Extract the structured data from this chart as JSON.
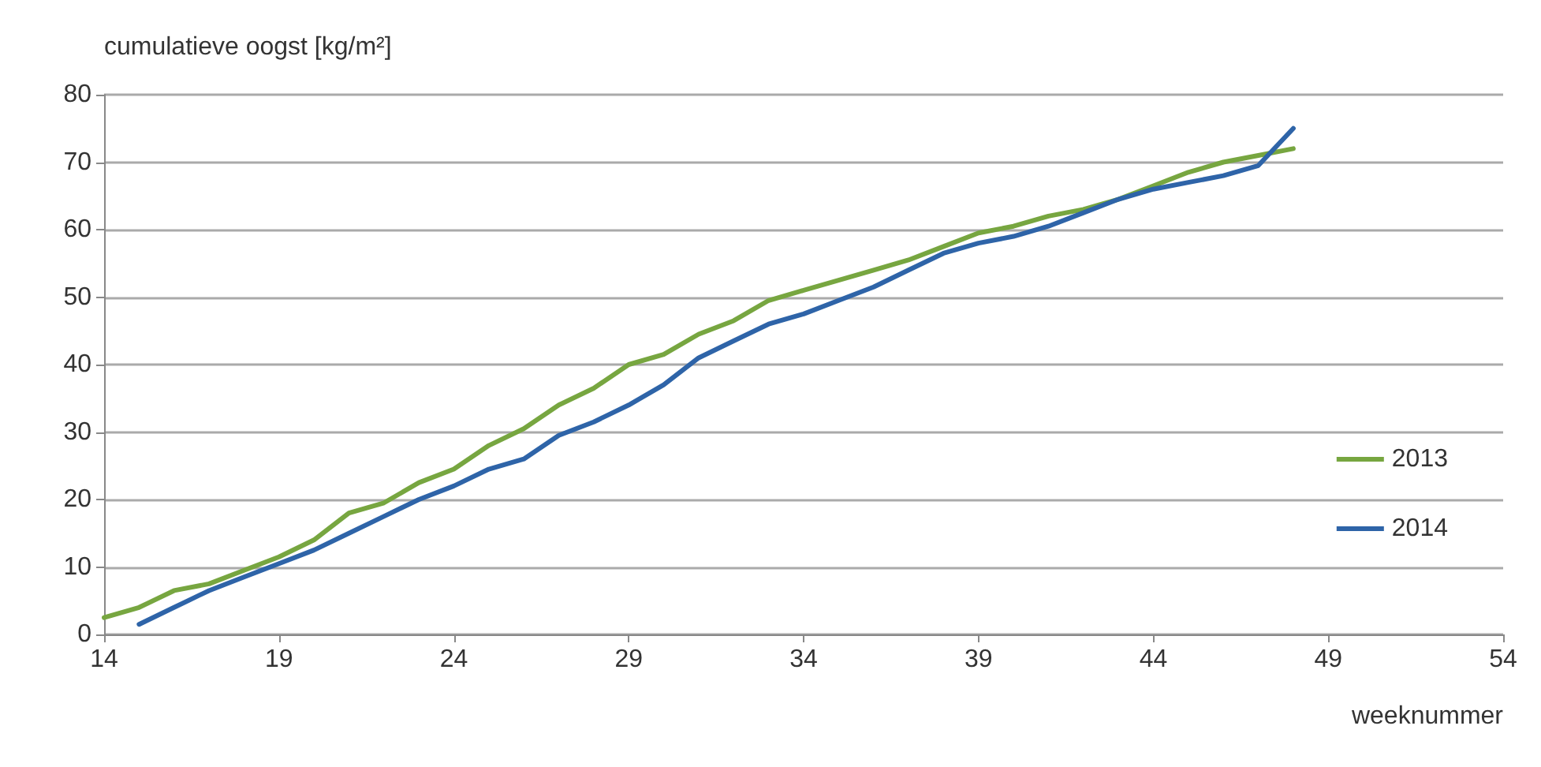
{
  "chart_data": {
    "type": "line",
    "xlabel": "weeknummer",
    "ylabel": "cumulatieve oogst [kg/m²]",
    "xlim": [
      14,
      54
    ],
    "xticks": [
      14,
      19,
      24,
      29,
      34,
      39,
      44,
      49,
      54
    ],
    "ylim": [
      0,
      80
    ],
    "yticks": [
      0,
      10,
      20,
      30,
      40,
      50,
      60,
      70,
      80
    ],
    "grid": "y",
    "legend": "bottom right",
    "marker": "none",
    "line_style": "solid",
    "series": [
      {
        "name": "2013",
        "color": "#77a640",
        "x": [
          14,
          15,
          16,
          17,
          18,
          19,
          20,
          21,
          22,
          23,
          24,
          25,
          26,
          27,
          28,
          29,
          30,
          31,
          32,
          33,
          34,
          35,
          36,
          37,
          38,
          39,
          40,
          41,
          42,
          43,
          44,
          45,
          46,
          47,
          48
        ],
        "values": [
          2.5,
          4,
          6.5,
          7.5,
          9.5,
          11.5,
          14,
          18,
          19.5,
          22.5,
          24.5,
          28,
          30.5,
          34,
          36.5,
          40,
          41.5,
          44.5,
          46.5,
          49.5,
          51,
          52.5,
          54,
          55.5,
          57.5,
          59.5,
          60.5,
          62,
          63,
          64.5,
          66.5,
          68.5,
          70,
          71,
          72
        ]
      },
      {
        "name": "2014",
        "color": "#2e64a8",
        "x": [
          15,
          16,
          17,
          18,
          19,
          20,
          21,
          22,
          23,
          24,
          25,
          26,
          27,
          28,
          29,
          30,
          31,
          32,
          33,
          34,
          35,
          36,
          37,
          38,
          39,
          40,
          41,
          42,
          43,
          44,
          45,
          46,
          47,
          48
        ],
        "values": [
          1.5,
          4,
          6.5,
          8.5,
          10.5,
          12.5,
          15,
          17.5,
          20,
          22,
          24.5,
          26,
          29.5,
          31.5,
          34,
          37,
          41,
          43.5,
          46,
          47.5,
          49.5,
          51.5,
          54,
          56.5,
          58,
          59,
          60.5,
          62.5,
          64.5,
          66,
          67,
          68,
          69.5,
          75
        ]
      }
    ]
  }
}
